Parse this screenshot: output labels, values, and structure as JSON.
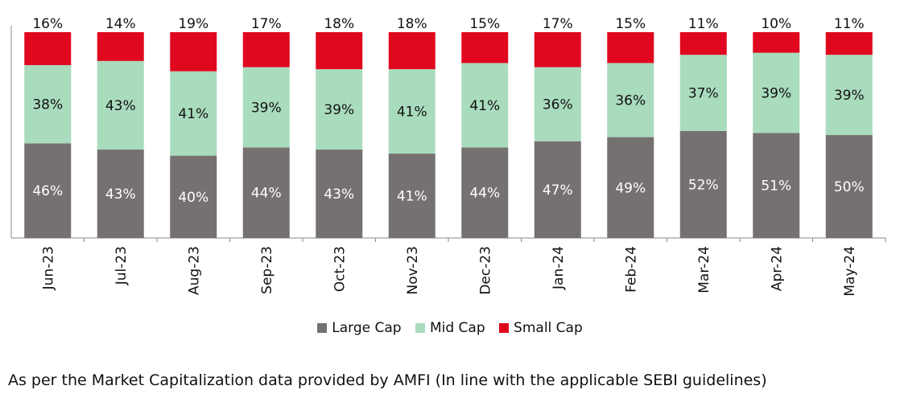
{
  "chart_data": {
    "type": "bar",
    "stacked": true,
    "categories": [
      "Jun-23",
      "Jul-23",
      "Aug-23",
      "Sep-23",
      "Oct-23",
      "Nov-23",
      "Dec-23",
      "Jan-24",
      "Feb-24",
      "Mar-24",
      "Apr-24",
      "May-24"
    ],
    "series": [
      {
        "name": "Large Cap",
        "color": "#767171",
        "values": [
          46,
          43,
          40,
          44,
          43,
          41,
          44,
          47,
          49,
          52,
          51,
          50
        ]
      },
      {
        "name": "Mid Cap",
        "color": "#a9dbbd",
        "values": [
          38,
          43,
          41,
          39,
          39,
          41,
          41,
          36,
          36,
          37,
          39,
          39
        ]
      },
      {
        "name": "Small Cap",
        "color": "#e0081e",
        "values": [
          16,
          14,
          19,
          17,
          18,
          18,
          15,
          17,
          15,
          11,
          10,
          11
        ]
      }
    ],
    "value_suffix": "%",
    "legend_position": "bottom",
    "grid": false
  },
  "legend": [
    {
      "label": "Large Cap",
      "color": "#767171"
    },
    {
      "label": "Mid Cap",
      "color": "#a9dbbd"
    },
    {
      "label": "Small Cap",
      "color": "#e0081e"
    }
  ],
  "footnote": "As per the Market Capitalization data provided by AMFI (In line with the applicable SEBI guidelines)"
}
